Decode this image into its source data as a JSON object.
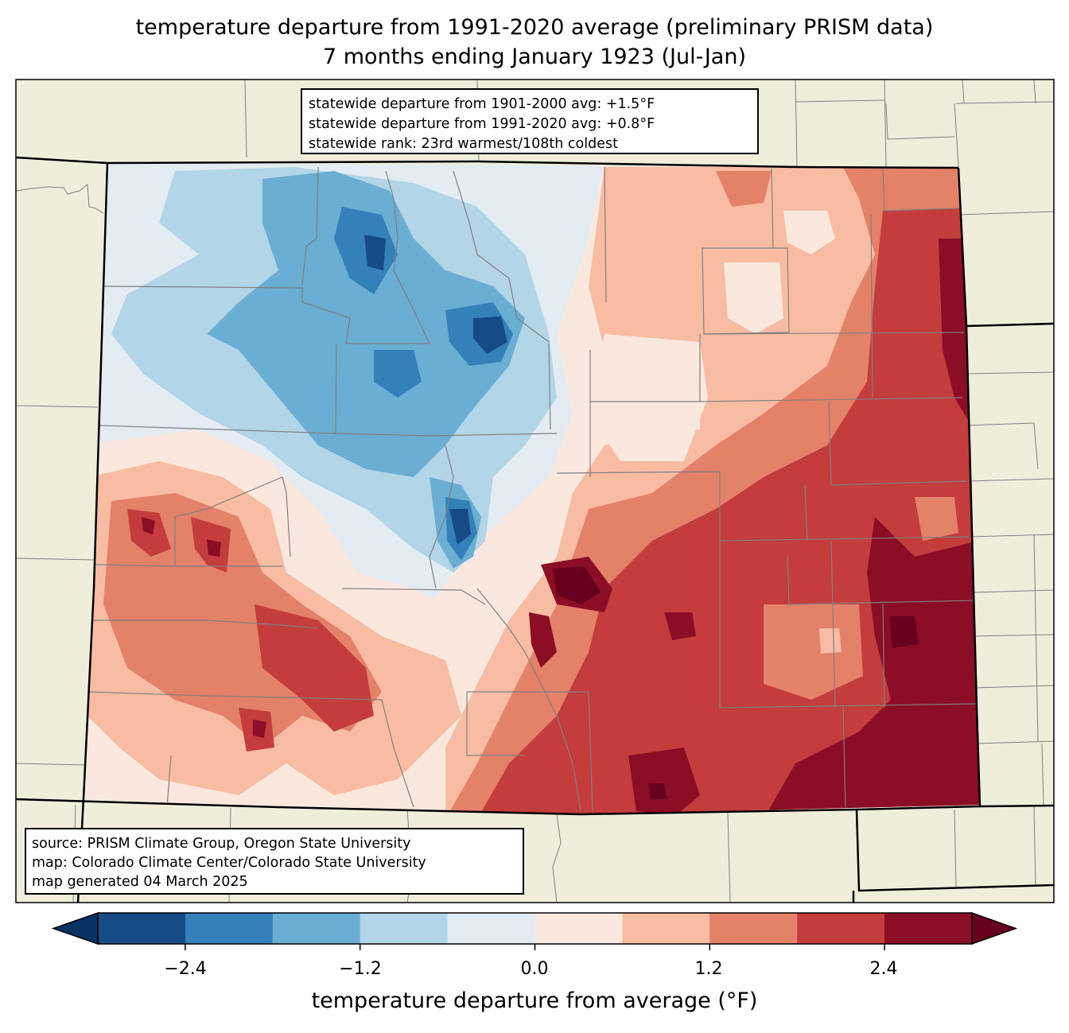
{
  "title": {
    "line1": "temperature departure from 1991-2020 average (preliminary PRISM data)",
    "line2": "7 months ending January 1923 (Jul-Jan)"
  },
  "stats": {
    "line1": "statewide departure from 1901-2000 avg: +1.5°F",
    "line2": "statewide departure from 1991-2020 avg: +0.8°F",
    "line3": "statewide rank: 23rd warmest/108th coldest"
  },
  "source": {
    "line1": "source: PRISM Climate Group, Oregon State University",
    "line2": "map: Colorado Climate Center/Colorado State University",
    "line3": "map generated 04 March 2025"
  },
  "colorbar": {
    "label": "temperature departure from average (°F)",
    "ticks": [
      "−2.4",
      "−1.2",
      "0.0",
      "1.2",
      "2.4"
    ],
    "tick_values": [
      -2.4,
      -1.2,
      0.0,
      1.2,
      2.4
    ],
    "levels": [
      -3.0,
      -2.4,
      -1.8,
      -1.2,
      -0.6,
      0.0,
      0.6,
      1.2,
      1.8,
      2.4,
      3.0
    ],
    "colors": [
      "#164b86",
      "#3480b9",
      "#6aaed3",
      "#b2d5e7",
      "#e3ecf3",
      "#fae8df",
      "#f8bca2",
      "#e48169",
      "#c43c3c",
      "#8b0d26"
    ],
    "under_color": "#063264",
    "over_color": "#67001f"
  },
  "map_colors": {
    "land": "#efeedb",
    "county_line": "#808080",
    "state_line": "#000000"
  }
}
